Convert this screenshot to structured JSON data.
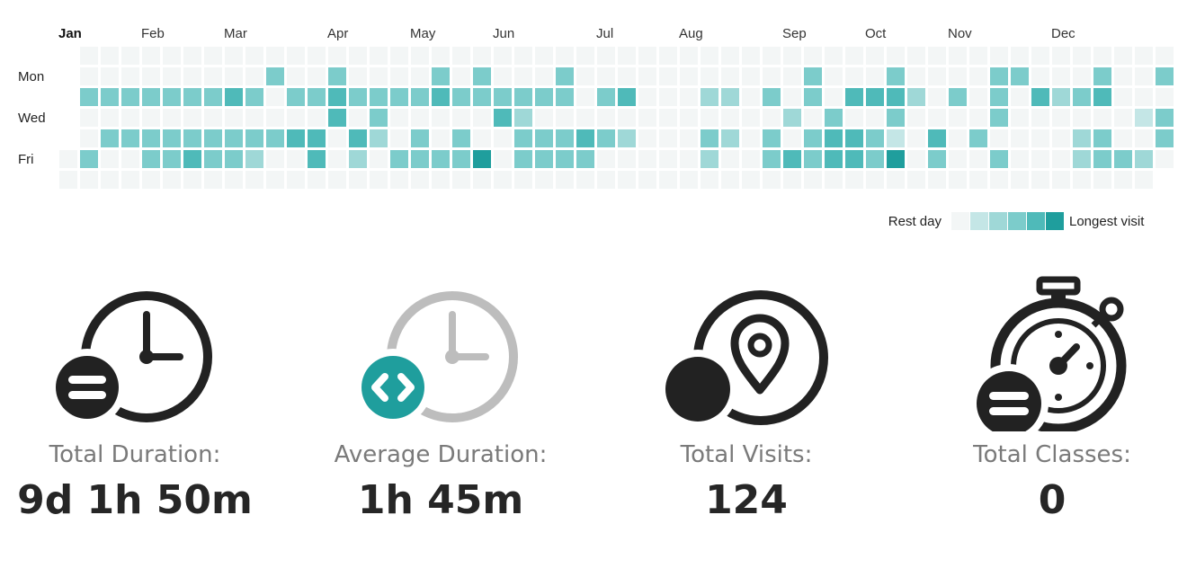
{
  "heatmap": {
    "months": [
      "Jan",
      "Feb",
      "Mar",
      "Apr",
      "May",
      "Jun",
      "Jul",
      "Aug",
      "Sep",
      "Oct",
      "Nov",
      "Dec"
    ],
    "weekdays": {
      "mon": "Mon",
      "wed": "Wed",
      "fri": "Fri"
    },
    "legend": {
      "low_label": "Rest day",
      "high_label": "Longest visit"
    },
    "colors": [
      "#f3f6f6",
      "#c4e6e6",
      "#9fd8d7",
      "#7ccccb",
      "#4fbab9",
      "#1f9e9d"
    ],
    "weeks": 54,
    "levels": {
      "mon": [
        [
          10,
          3
        ],
        [
          13,
          3
        ],
        [
          18,
          3
        ],
        [
          20,
          3
        ],
        [
          24,
          3
        ],
        [
          36,
          3
        ],
        [
          40,
          3
        ],
        [
          45,
          3
        ],
        [
          46,
          3
        ],
        [
          50,
          3
        ],
        [
          53,
          3
        ]
      ],
      "tue": [
        [
          1,
          3
        ],
        [
          2,
          3
        ],
        [
          3,
          3
        ],
        [
          4,
          3
        ],
        [
          5,
          3
        ],
        [
          6,
          3
        ],
        [
          7,
          3
        ],
        [
          8,
          4
        ],
        [
          9,
          3
        ],
        [
          11,
          3
        ],
        [
          12,
          3
        ],
        [
          13,
          4
        ],
        [
          14,
          3
        ],
        [
          15,
          3
        ],
        [
          16,
          3
        ],
        [
          17,
          3
        ],
        [
          18,
          4
        ],
        [
          19,
          3
        ],
        [
          20,
          3
        ],
        [
          21,
          3
        ],
        [
          22,
          3
        ],
        [
          23,
          3
        ],
        [
          24,
          3
        ],
        [
          26,
          3
        ],
        [
          27,
          4
        ],
        [
          31,
          2
        ],
        [
          32,
          2
        ],
        [
          34,
          3
        ],
        [
          36,
          3
        ],
        [
          38,
          4
        ],
        [
          39,
          4
        ],
        [
          40,
          4
        ],
        [
          41,
          2
        ],
        [
          43,
          3
        ],
        [
          45,
          3
        ],
        [
          47,
          4
        ],
        [
          48,
          2
        ],
        [
          49,
          3
        ],
        [
          50,
          4
        ]
      ],
      "wed": [
        [
          13,
          4
        ],
        [
          15,
          3
        ],
        [
          21,
          4
        ],
        [
          22,
          2
        ],
        [
          35,
          2
        ],
        [
          37,
          3
        ],
        [
          40,
          3
        ],
        [
          45,
          3
        ],
        [
          52,
          1
        ],
        [
          53,
          3
        ]
      ],
      "thu": [
        [
          2,
          3
        ],
        [
          3,
          3
        ],
        [
          4,
          3
        ],
        [
          5,
          3
        ],
        [
          6,
          3
        ],
        [
          7,
          3
        ],
        [
          8,
          3
        ],
        [
          9,
          3
        ],
        [
          10,
          3
        ],
        [
          11,
          4
        ],
        [
          12,
          4
        ],
        [
          14,
          4
        ],
        [
          15,
          2
        ],
        [
          17,
          3
        ],
        [
          19,
          3
        ],
        [
          22,
          3
        ],
        [
          23,
          3
        ],
        [
          24,
          3
        ],
        [
          25,
          4
        ],
        [
          26,
          3
        ],
        [
          27,
          2
        ],
        [
          31,
          3
        ],
        [
          32,
          2
        ],
        [
          34,
          3
        ],
        [
          36,
          3
        ],
        [
          37,
          4
        ],
        [
          38,
          4
        ],
        [
          39,
          3
        ],
        [
          40,
          1
        ],
        [
          42,
          4
        ],
        [
          44,
          3
        ],
        [
          49,
          2
        ],
        [
          50,
          3
        ],
        [
          53,
          3
        ]
      ],
      "fri": [
        [
          1,
          3
        ],
        [
          4,
          3
        ],
        [
          5,
          3
        ],
        [
          6,
          4
        ],
        [
          7,
          3
        ],
        [
          8,
          3
        ],
        [
          9,
          2
        ],
        [
          12,
          4
        ],
        [
          14,
          2
        ],
        [
          16,
          3
        ],
        [
          17,
          3
        ],
        [
          18,
          3
        ],
        [
          19,
          3
        ],
        [
          20,
          5
        ],
        [
          22,
          3
        ],
        [
          23,
          3
        ],
        [
          24,
          3
        ],
        [
          25,
          3
        ],
        [
          31,
          2
        ],
        [
          34,
          3
        ],
        [
          35,
          4
        ],
        [
          36,
          3
        ],
        [
          37,
          4
        ],
        [
          38,
          4
        ],
        [
          39,
          3
        ],
        [
          40,
          5
        ],
        [
          42,
          3
        ],
        [
          45,
          3
        ],
        [
          49,
          2
        ],
        [
          50,
          3
        ],
        [
          51,
          3
        ],
        [
          52,
          2
        ]
      ]
    }
  },
  "stats": [
    {
      "icon": "total-duration-clock-icon",
      "label": "Total Duration:",
      "value": "9d 1h 50m"
    },
    {
      "icon": "average-duration-clock-icon",
      "label": "Average Duration:",
      "value": "1h 45m"
    },
    {
      "icon": "visits-location-pin-icon",
      "label": "Total Visits:",
      "value": "124"
    },
    {
      "icon": "classes-stopwatch-icon",
      "label": "Total Classes:",
      "value": "0"
    }
  ]
}
